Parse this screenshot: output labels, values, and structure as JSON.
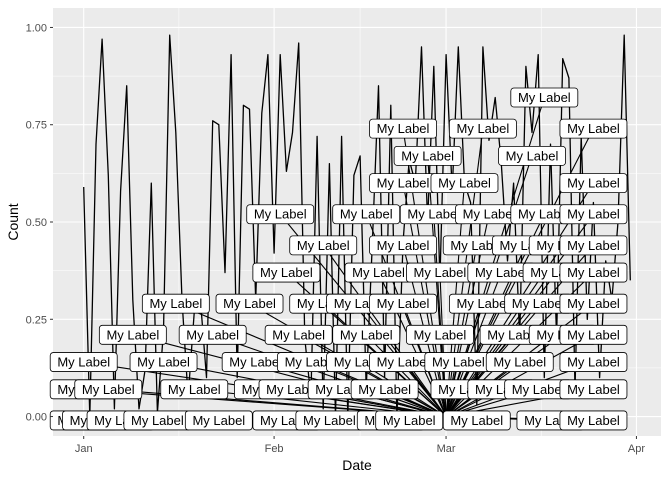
{
  "chart_data": {
    "type": "line",
    "title": "",
    "xlabel": "Date",
    "ylabel": "Count",
    "x_type": "date",
    "xlim": [
      "2013-12-27",
      "2014-04-05"
    ],
    "ylim": [
      -0.05,
      1.05
    ],
    "grid": true,
    "legend": "none",
    "x_ticks": [
      {
        "date": "2014-01-01",
        "label": "Jan"
      },
      {
        "date": "2014-02-01",
        "label": "Feb"
      },
      {
        "date": "2014-03-01",
        "label": "Mar"
      },
      {
        "date": "2014-04-01",
        "label": "Apr"
      }
    ],
    "y_ticks": [
      {
        "value": 0,
        "label": "0.00"
      },
      {
        "value": 0.25,
        "label": "0.25"
      },
      {
        "value": 0.5,
        "label": "0.50"
      },
      {
        "value": 0.75,
        "label": "0.75"
      },
      {
        "value": 1,
        "label": "1.00"
      }
    ],
    "series": [
      {
        "color": "#000000",
        "points": [
          [
            "2014-01-01",
            0.59
          ],
          [
            "2014-01-02",
            0.0
          ],
          [
            "2014-01-03",
            0.7
          ],
          [
            "2014-01-04",
            0.97
          ],
          [
            "2014-01-05",
            0.62
          ],
          [
            "2014-01-06",
            0.02
          ],
          [
            "2014-01-07",
            0.58
          ],
          [
            "2014-01-08",
            0.85
          ],
          [
            "2014-01-09",
            0.3
          ],
          [
            "2014-01-10",
            0.02
          ],
          [
            "2014-01-11",
            0.12
          ],
          [
            "2014-01-12",
            0.6
          ],
          [
            "2014-01-13",
            0.01
          ],
          [
            "2014-01-14",
            0.22
          ],
          [
            "2014-01-15",
            0.98
          ],
          [
            "2014-01-16",
            0.73
          ],
          [
            "2014-01-17",
            0.3
          ],
          [
            "2014-01-18",
            0.05
          ],
          [
            "2014-01-19",
            0.27
          ],
          [
            "2014-01-20",
            0.3
          ],
          [
            "2014-01-21",
            0.1
          ],
          [
            "2014-01-22",
            0.76
          ],
          [
            "2014-01-23",
            0.75
          ],
          [
            "2014-01-24",
            0.37
          ],
          [
            "2014-01-25",
            0.93
          ],
          [
            "2014-01-26",
            0.1
          ],
          [
            "2014-01-27",
            0.8
          ],
          [
            "2014-01-28",
            0.79
          ],
          [
            "2014-01-29",
            0.3
          ],
          [
            "2014-01-30",
            0.78
          ],
          [
            "2014-01-31",
            0.93
          ],
          [
            "2014-02-01",
            0.42
          ],
          [
            "2014-02-02",
            0.93
          ],
          [
            "2014-02-03",
            0.63
          ],
          [
            "2014-02-04",
            0.73
          ],
          [
            "2014-02-05",
            0.96
          ],
          [
            "2014-02-06",
            0.2
          ],
          [
            "2014-02-07",
            0.05
          ],
          [
            "2014-02-08",
            0.72
          ],
          [
            "2014-02-09",
            0.02
          ],
          [
            "2014-02-10",
            0.65
          ],
          [
            "2014-02-11",
            0.0
          ],
          [
            "2014-02-12",
            0.72
          ],
          [
            "2014-02-13",
            0.0
          ],
          [
            "2014-02-14",
            0.62
          ],
          [
            "2014-02-15",
            0.67
          ],
          [
            "2014-02-16",
            0.07
          ],
          [
            "2014-02-17",
            0.45
          ],
          [
            "2014-02-18",
            0.85
          ],
          [
            "2014-02-19",
            0.1
          ],
          [
            "2014-02-20",
            0.8
          ],
          [
            "2014-02-21",
            0.0
          ],
          [
            "2014-02-22",
            0.45
          ],
          [
            "2014-02-23",
            0.66
          ],
          [
            "2014-02-24",
            0.6
          ],
          [
            "2014-02-25",
            0.95
          ],
          [
            "2014-02-26",
            0.5
          ],
          [
            "2014-02-27",
            0.9
          ],
          [
            "2014-02-28",
            0.35
          ],
          [
            "2014-03-01",
            0.93
          ],
          [
            "2014-03-02",
            0.58
          ],
          [
            "2014-03-03",
            0.95
          ],
          [
            "2014-03-04",
            0.6
          ],
          [
            "2014-03-05",
            0.55
          ],
          [
            "2014-03-06",
            0.03
          ],
          [
            "2014-03-07",
            0.95
          ],
          [
            "2014-03-08",
            0.71
          ],
          [
            "2014-03-09",
            0.82
          ],
          [
            "2014-03-10",
            0.65
          ],
          [
            "2014-03-11",
            0.4
          ],
          [
            "2014-03-12",
            0.6
          ],
          [
            "2014-03-13",
            0.2
          ],
          [
            "2014-03-14",
            0.9
          ],
          [
            "2014-03-15",
            0.73
          ],
          [
            "2014-03-16",
            0.93
          ],
          [
            "2014-03-17",
            0.1
          ],
          [
            "2014-03-18",
            0.7
          ],
          [
            "2014-03-19",
            0.2
          ],
          [
            "2014-03-20",
            0.92
          ],
          [
            "2014-03-21",
            0.87
          ],
          [
            "2014-03-22",
            0.07
          ],
          [
            "2014-03-23",
            0.72
          ],
          [
            "2014-03-24",
            0.25
          ],
          [
            "2014-03-25",
            0.55
          ],
          [
            "2014-03-26",
            0.1
          ],
          [
            "2014-03-27",
            0.4
          ],
          [
            "2014-03-28",
            0.3
          ],
          [
            "2014-03-29",
            0.5
          ],
          [
            "2014-03-30",
            0.98
          ],
          [
            "2014-03-31",
            0.35
          ]
        ]
      }
    ],
    "annotations": {
      "text": "My Label",
      "segment_end": [
        "2014-03-01",
        0.0
      ],
      "labels": [
        [
          "2014-01-01",
          0.14
        ],
        [
          "2014-01-01",
          0.07
        ],
        [
          "2014-01-01",
          -0.01
        ],
        [
          "2014-01-03",
          -0.01
        ],
        [
          "2014-01-05",
          0.07
        ],
        [
          "2014-01-07",
          -0.01
        ],
        [
          "2014-01-09",
          0.21
        ],
        [
          "2014-01-13",
          -0.01
        ],
        [
          "2014-01-14",
          0.14
        ],
        [
          "2014-01-16",
          0.29
        ],
        [
          "2014-01-19",
          0.07
        ],
        [
          "2014-01-22",
          0.21
        ],
        [
          "2014-01-23",
          -0.01
        ],
        [
          "2014-01-28",
          0.29
        ],
        [
          "2014-01-29",
          0.14
        ],
        [
          "2014-01-31",
          0.07
        ],
        [
          "2014-02-02",
          0.52
        ],
        [
          "2014-02-03",
          -0.01
        ],
        [
          "2014-02-03",
          0.37
        ],
        [
          "2014-02-04",
          0.07
        ],
        [
          "2014-02-05",
          0.21
        ],
        [
          "2014-02-07",
          0.14
        ],
        [
          "2014-02-09",
          0.29
        ],
        [
          "2014-02-09",
          0.44
        ],
        [
          "2014-02-10",
          -0.01
        ],
        [
          "2014-02-12",
          0.07
        ],
        [
          "2014-02-15",
          0.14
        ],
        [
          "2014-02-15",
          0.29
        ],
        [
          "2014-02-16",
          0.52
        ],
        [
          "2014-02-16",
          0.21
        ],
        [
          "2014-02-18",
          0.37
        ],
        [
          "2014-02-19",
          0.07
        ],
        [
          "2014-02-20",
          -0.01
        ],
        [
          "2014-02-22",
          0.6
        ],
        [
          "2014-02-22",
          0.74
        ],
        [
          "2014-02-22",
          0.44
        ],
        [
          "2014-02-22",
          0.29
        ],
        [
          "2014-02-22",
          0.14
        ],
        [
          "2014-02-23",
          -0.01
        ],
        [
          "2014-02-26",
          0.67
        ],
        [
          "2014-02-27",
          0.52
        ],
        [
          "2014-02-28",
          0.37
        ],
        [
          "2014-02-28",
          0.21
        ],
        [
          "2014-03-03",
          0.14
        ],
        [
          "2014-03-04",
          0.07
        ],
        [
          "2014-03-04",
          0.6
        ],
        [
          "2014-03-06",
          -0.01
        ],
        [
          "2014-03-06",
          0.44
        ],
        [
          "2014-03-07",
          0.29
        ],
        [
          "2014-03-07",
          0.74
        ],
        [
          "2014-03-08",
          0.52
        ],
        [
          "2014-03-10",
          0.37
        ],
        [
          "2014-03-10",
          0.07
        ],
        [
          "2014-03-12",
          0.21
        ],
        [
          "2014-03-13",
          0.14
        ],
        [
          "2014-03-14",
          0.44
        ],
        [
          "2014-03-15",
          0.67
        ],
        [
          "2014-03-16",
          0.29
        ],
        [
          "2014-03-16",
          0.07
        ],
        [
          "2014-03-17",
          0.52
        ],
        [
          "2014-03-17",
          0.82
        ],
        [
          "2014-03-18",
          -0.01
        ],
        [
          "2014-03-19",
          0.37
        ],
        [
          "2014-03-20",
          0.44
        ],
        [
          "2014-03-20",
          0.21
        ],
        [
          "2014-03-25",
          0.74
        ],
        [
          "2014-03-25",
          0.6
        ],
        [
          "2014-03-25",
          0.52
        ],
        [
          "2014-03-25",
          0.44
        ],
        [
          "2014-03-25",
          0.37
        ],
        [
          "2014-03-25",
          0.29
        ],
        [
          "2014-03-25",
          0.21
        ],
        [
          "2014-03-25",
          0.14
        ],
        [
          "2014-03-25",
          0.07
        ],
        [
          "2014-03-25",
          -0.01
        ]
      ]
    }
  }
}
